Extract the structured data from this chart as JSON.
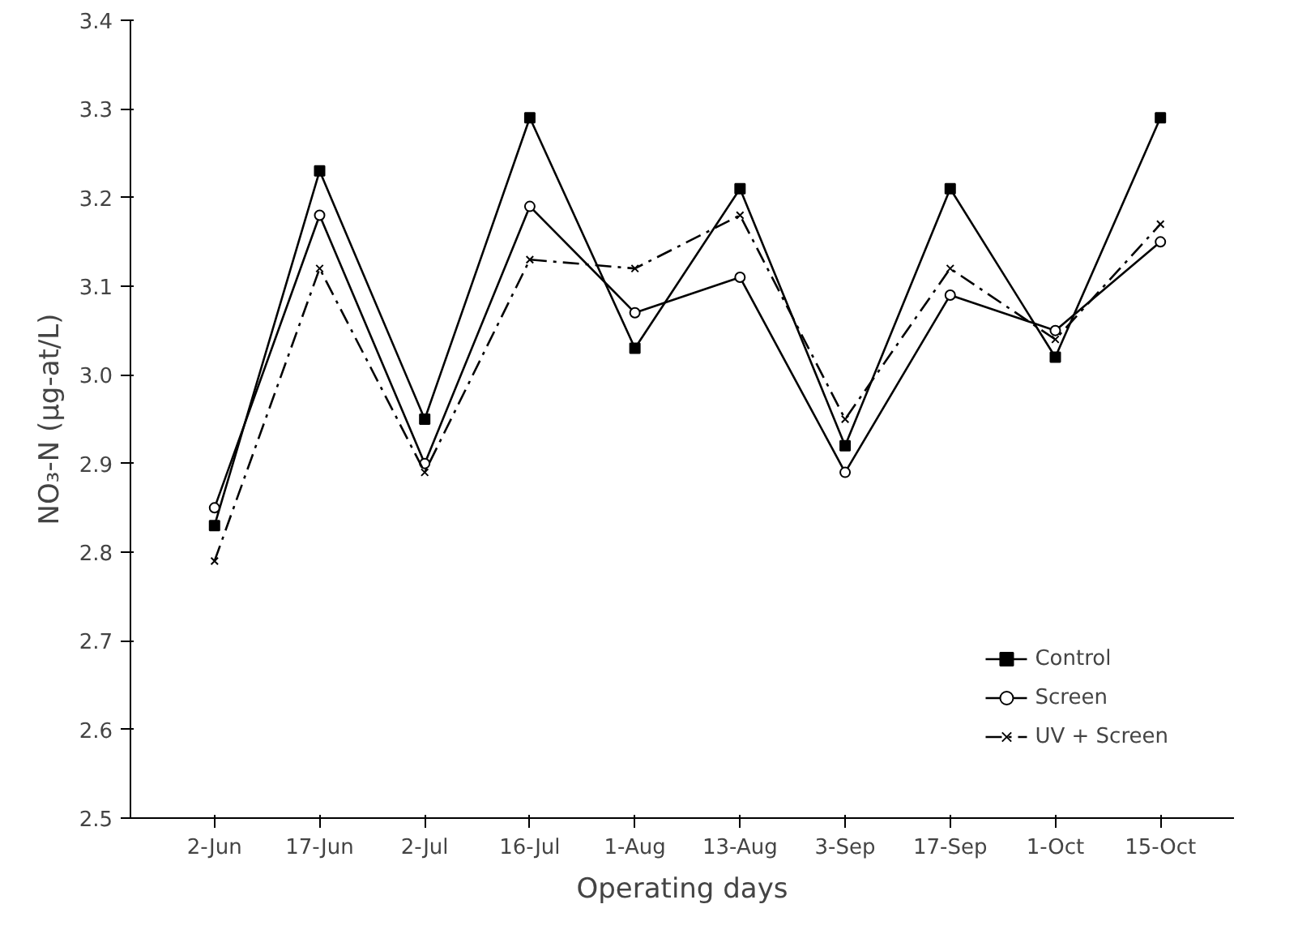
{
  "chart_data": {
    "type": "line",
    "xlabel": "Operating days",
    "ylabel": "NO₃-N (μg-at/L)",
    "categories": [
      "2-Jun",
      "17-Jun",
      "2-Jul",
      "16-Jul",
      "1-Aug",
      "13-Aug",
      "3-Sep",
      "17-Sep",
      "1-Oct",
      "15-Oct"
    ],
    "series": [
      {
        "name": "Control",
        "color": "#000000",
        "marker": "square",
        "line_style": "solid",
        "values": [
          2.83,
          3.23,
          2.95,
          3.29,
          3.03,
          3.21,
          2.92,
          3.21,
          3.02,
          3.29
        ]
      },
      {
        "name": "Screen",
        "color": "#000000",
        "marker": "circle",
        "line_style": "solid",
        "values": [
          2.85,
          3.18,
          2.9,
          3.19,
          3.07,
          3.11,
          2.89,
          3.09,
          3.05,
          3.15
        ]
      },
      {
        "name": "UV + Screen",
        "color": "#000000",
        "marker": "cross",
        "line_style": "dashed",
        "values": [
          2.79,
          3.12,
          2.89,
          3.13,
          3.12,
          3.18,
          2.95,
          3.12,
          3.04,
          3.17
        ]
      }
    ],
    "ylim": [
      2.5,
      3.4
    ],
    "yticks": [
      2.5,
      2.6,
      2.7,
      2.8,
      2.9,
      {
        "value": 3,
        "label": "3.0"
      },
      3.1,
      3.2,
      3.3,
      3.4
    ],
    "grid": false,
    "legend": "bottom right"
  }
}
